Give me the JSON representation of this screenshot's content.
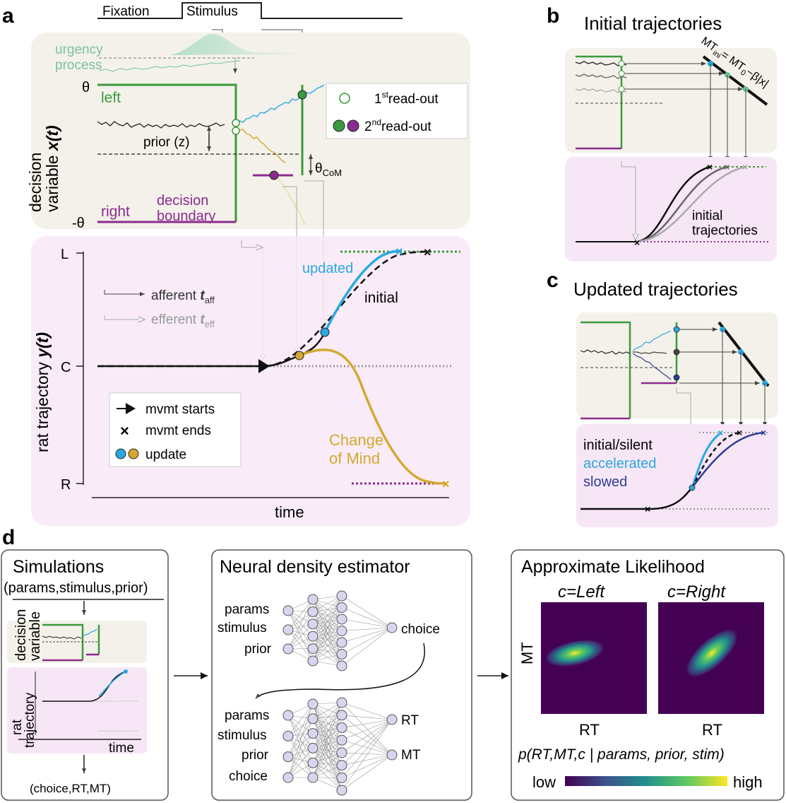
{
  "panel_labels": {
    "a": "a",
    "b": "b",
    "c": "c",
    "d": "d"
  },
  "colors": {
    "left": "#3c9a3c",
    "right": "#8a2b8e",
    "updated": "#2aa8e0",
    "com": "#d4a830",
    "slowed": "#2c3e94",
    "urgency": "#7cc2a4",
    "beige": "#f4f1ea",
    "pink": "#f7e7f6",
    "node": "#d9d5ef"
  },
  "panel_a": {
    "epoch_fixation": "Fixation",
    "epoch_stimulus": "Stimulus",
    "urgency_1": "urgency",
    "urgency_2": "process",
    "theta": "θ",
    "neg_theta": "-θ",
    "left": "left",
    "right": "right",
    "decision_boundary_1": "decision",
    "decision_boundary_2": "boundary",
    "prior": "prior (z)",
    "theta_com": "θ",
    "theta_com_sub": "CoM",
    "ylabel_top_1": "decision",
    "ylabel_top_2": "variable",
    "ylabel_top_var": "x(t)",
    "legend_first": "1",
    "legend_first_sup": "st",
    "legend_first_rest": "read-out",
    "legend_second": "2",
    "legend_second_sup": "nd",
    "legend_second_rest": "read-out",
    "tick_L": "L",
    "tick_C": "C",
    "tick_R": "R",
    "ylabel_bottom": "rat trajectory",
    "ylabel_bottom_var": "y(t)",
    "afferent": "afferent",
    "afferent_t": "t",
    "afferent_sub": "aff",
    "efferent": "efferent",
    "efferent_t": "t",
    "efferent_sub": "eff",
    "updated": "updated",
    "initial": "initial",
    "com_1": "Change",
    "com_2": "of Mind",
    "legend_start": "mvmt starts",
    "legend_end": "mvmt ends",
    "legend_update": "update",
    "xlabel": "time"
  },
  "panel_b": {
    "title": "Initial trajectories",
    "formula_mt": "MT",
    "formula_ini": "ini",
    "formula_rest": "= MT",
    "formula_0": "0",
    "formula_tail": "−β|x|",
    "label_1": "initial",
    "label_2": "trajectories"
  },
  "panel_c": {
    "title": "Updated trajectories",
    "legend_initial": "initial/silent",
    "legend_accelerated": "accelerated",
    "legend_slowed": "slowed"
  },
  "panel_d": {
    "box1_title": "Simulations",
    "box1_sub": "(params,stimulus,prior)",
    "box1_ylabel_1": "decision",
    "box1_ylabel_2": "variable",
    "box1_ylabel_3": "rat",
    "box1_ylabel_4": "trajectory",
    "box1_time": "time",
    "box1_out": "(choice,RT,MT)",
    "box2_title": "Neural density estimator",
    "net1_in": [
      "params",
      "stimulus",
      "prior"
    ],
    "net1_out": "choice",
    "net2_in": [
      "params",
      "stimulus",
      "prior",
      "choice"
    ],
    "net2_out": [
      "RT",
      "MT"
    ],
    "box3_title": "Approximate Likelihood",
    "cond_left": "c=Left",
    "cond_right": "c=Right",
    "ylabel": "MT",
    "xlabel_1": "RT",
    "xlabel_2": "RT",
    "formula": "p(RT,MT,c | params, prior, stim)",
    "cbar_low": "low",
    "cbar_high": "high"
  }
}
